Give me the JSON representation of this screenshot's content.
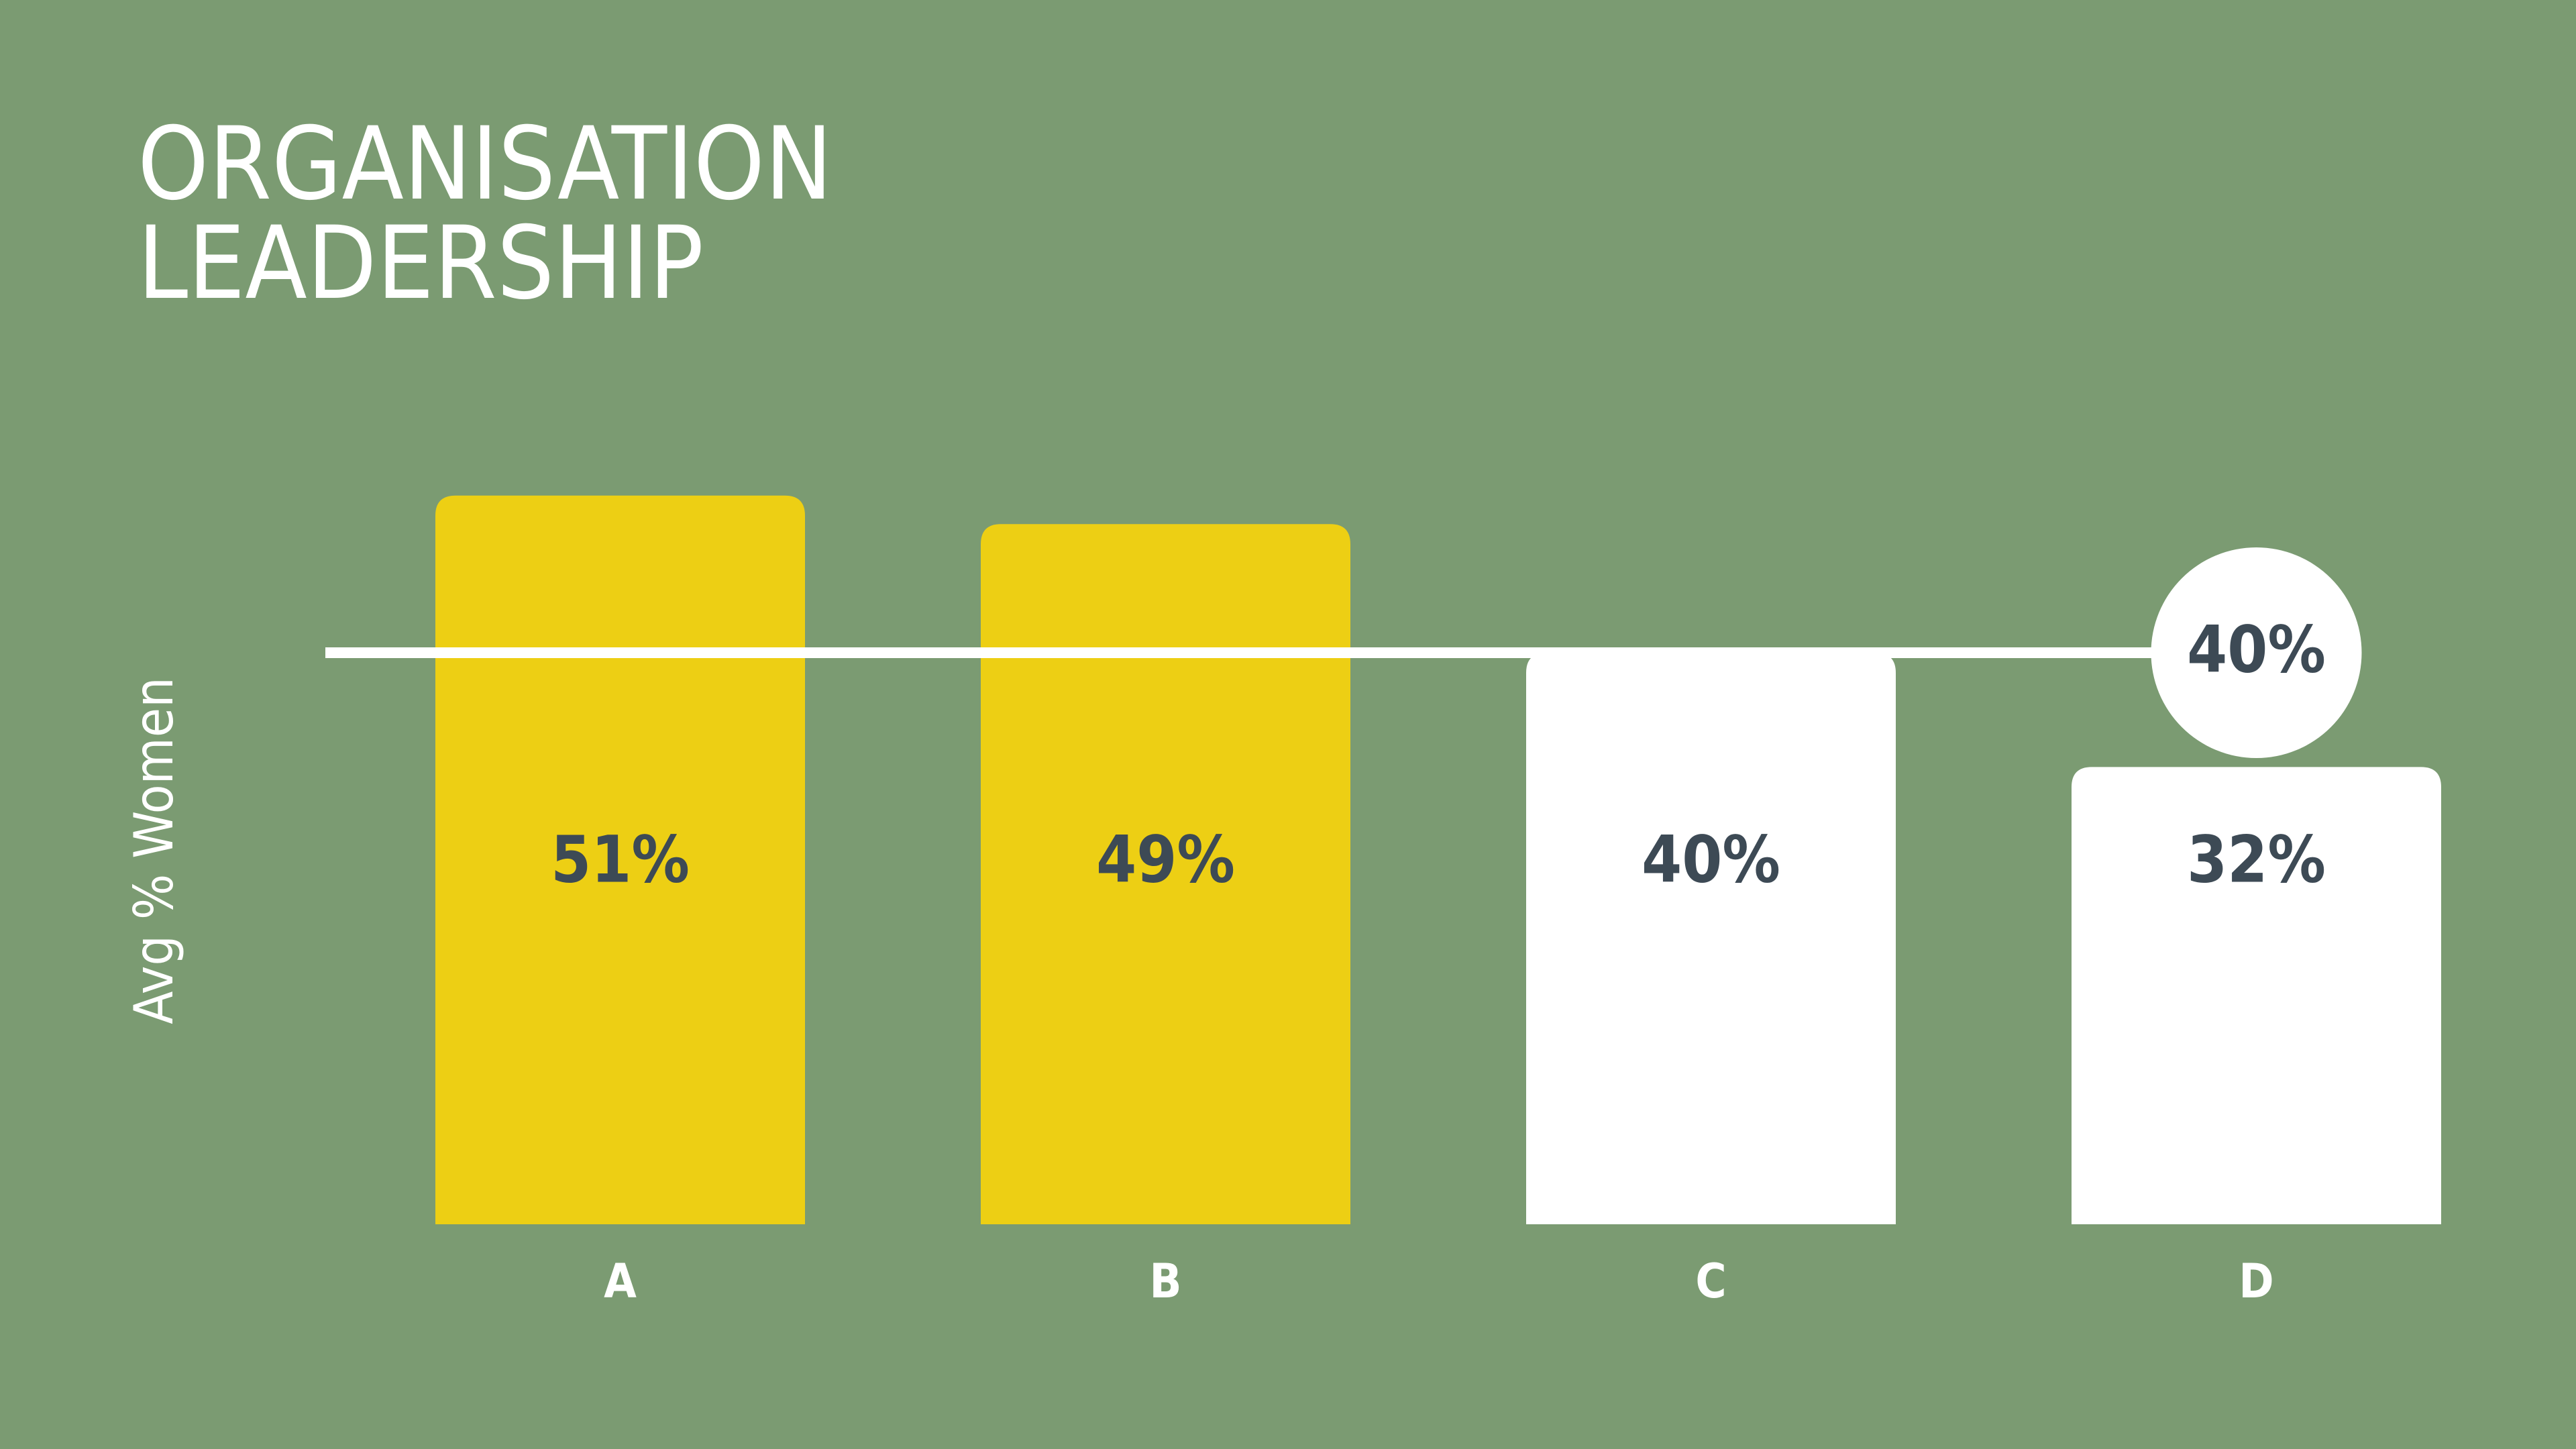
{
  "chart_data": {
    "type": "bar",
    "title": "ORGANISATION LEADERSHIP",
    "ylabel": "Avg % Women",
    "categories": [
      "A",
      "B",
      "C",
      "D"
    ],
    "values": [
      51,
      49,
      40,
      32
    ],
    "value_labels": [
      "51%",
      "49%",
      "40%",
      "32%"
    ],
    "colors": [
      "#edcf14",
      "#edcf14",
      "#ffffff",
      "#ffffff"
    ],
    "ylim": [
      0,
      60
    ],
    "reference_line": {
      "value": 40,
      "label": "40%",
      "color": "#ffffff"
    }
  }
}
